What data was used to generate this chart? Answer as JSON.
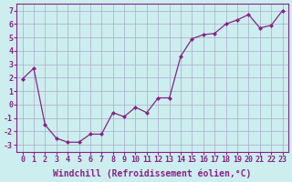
{
  "x": [
    0,
    1,
    2,
    3,
    4,
    5,
    6,
    7,
    8,
    9,
    10,
    11,
    12,
    13,
    14,
    15,
    16,
    17,
    18,
    19,
    20,
    21,
    22,
    23
  ],
  "y": [
    1.9,
    2.7,
    -1.5,
    -2.5,
    -2.8,
    -2.8,
    -2.2,
    -2.2,
    -0.6,
    -0.9,
    -0.2,
    -0.6,
    0.5,
    0.5,
    3.6,
    4.9,
    5.2,
    5.3,
    6.0,
    6.3,
    6.7,
    5.7,
    5.9,
    7.0
  ],
  "line_color": "#882288",
  "marker": "D",
  "markersize": 2.0,
  "linewidth": 0.9,
  "bg_color": "#cceeee",
  "grid_color": "#aaaacc",
  "xlabel": "Windchill (Refroidissement éolien,°C)",
  "ylim": [
    -3.5,
    7.5
  ],
  "xlim": [
    -0.5,
    23.5
  ],
  "yticks": [
    -3,
    -2,
    -1,
    0,
    1,
    2,
    3,
    4,
    5,
    6,
    7
  ],
  "xticks": [
    0,
    1,
    2,
    3,
    4,
    5,
    6,
    7,
    8,
    9,
    10,
    11,
    12,
    13,
    14,
    15,
    16,
    17,
    18,
    19,
    20,
    21,
    22,
    23
  ],
  "tick_color": "#882288",
  "xlabel_fontsize": 7,
  "tick_fontsize": 6
}
